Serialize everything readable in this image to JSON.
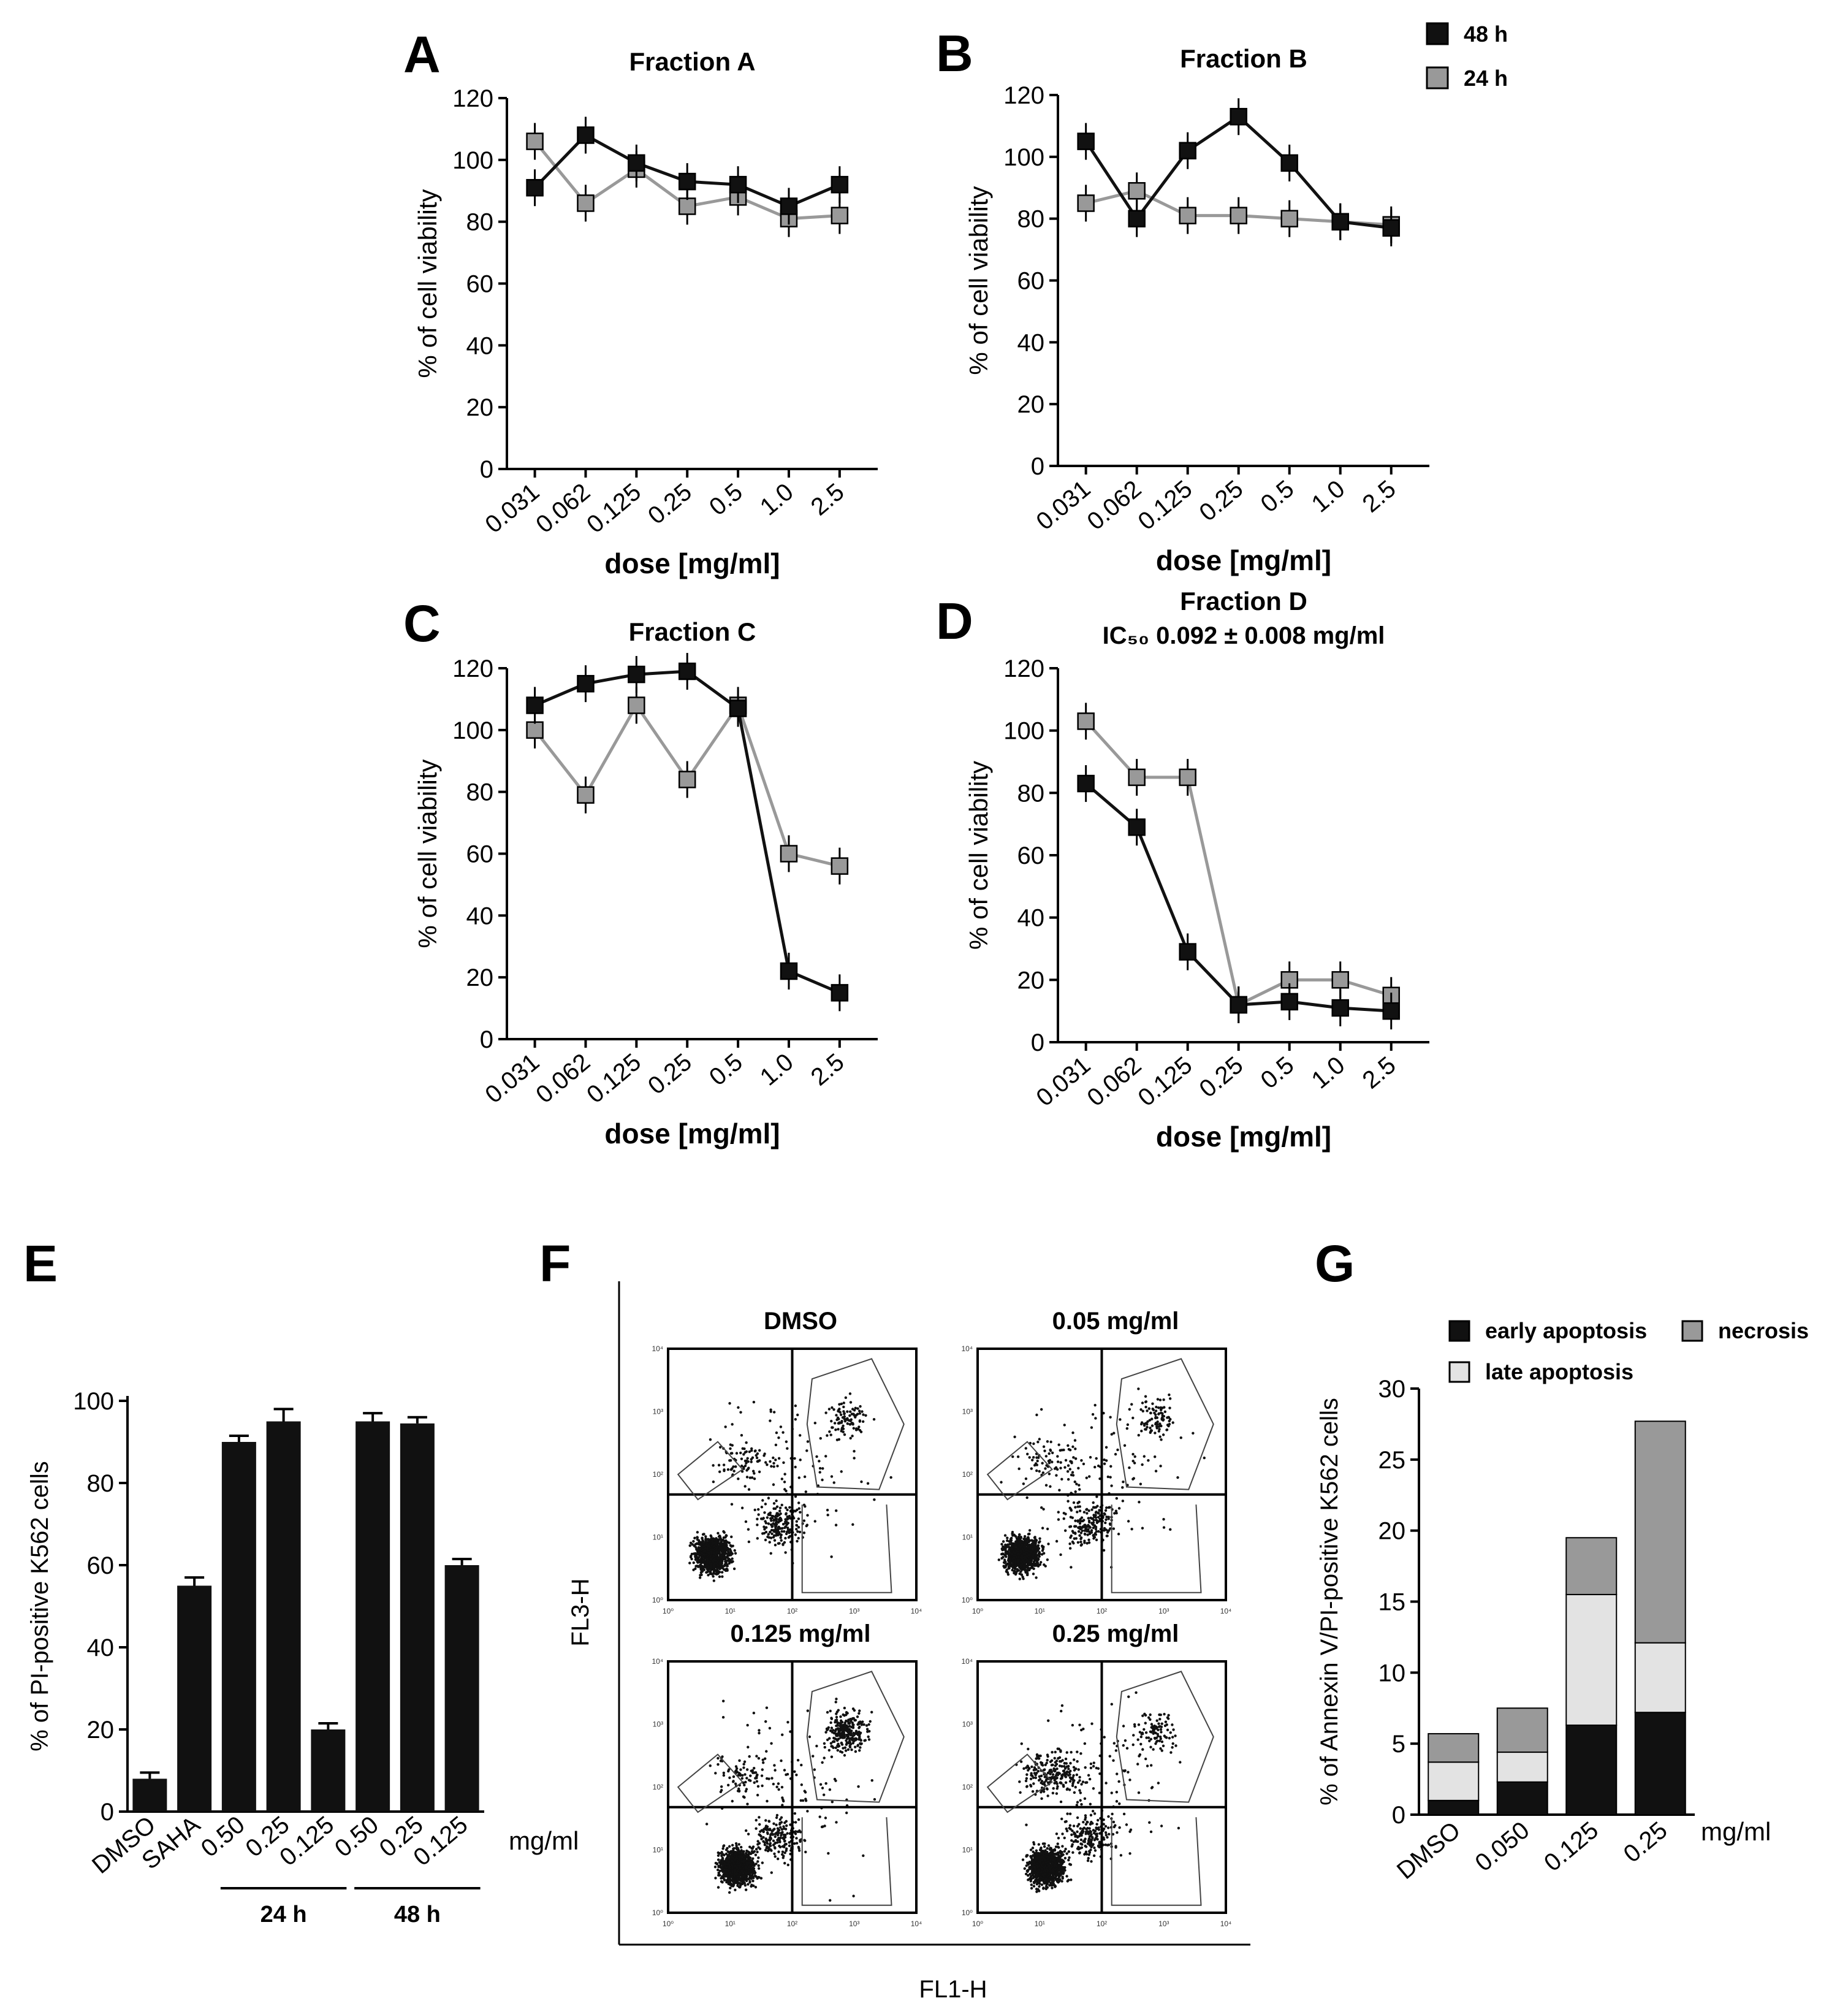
{
  "colors": {
    "s48": "#111111",
    "s24": "#999999",
    "bar": "#111111",
    "early": "#111111",
    "late": "#e3e3e3",
    "necrosis": "#999999"
  },
  "legend_top": {
    "s48": "48 h",
    "s24": "24 h"
  },
  "panel_letters": {
    "A": "A",
    "B": "B",
    "C": "C",
    "D": "D",
    "E": "E",
    "F": "F",
    "G": "G"
  },
  "chart_data": [
    {
      "id": "A",
      "type": "line",
      "title": "Fraction A",
      "subtitle": "",
      "xlabel": "dose [mg/ml]",
      "ylabel": "% of cell viability",
      "ylim": [
        0,
        120
      ],
      "yticks": [
        0,
        20,
        40,
        60,
        80,
        100,
        120
      ],
      "categories": [
        "0.031",
        "0.062",
        "0.125",
        "0.25",
        "0.5",
        "1.0",
        "2.5"
      ],
      "series": [
        {
          "name": "48 h",
          "values": [
            91,
            108,
            99,
            93,
            92,
            85,
            92
          ]
        },
        {
          "name": "24 h",
          "values": [
            106,
            86,
            97,
            85,
            88,
            81,
            82
          ]
        }
      ]
    },
    {
      "id": "B",
      "type": "line",
      "title": "Fraction B",
      "subtitle": "",
      "xlabel": "dose [mg/ml]",
      "ylabel": "% of cell viability",
      "ylim": [
        0,
        120
      ],
      "yticks": [
        0,
        20,
        40,
        60,
        80,
        100,
        120
      ],
      "categories": [
        "0.031",
        "0.062",
        "0.125",
        "0.25",
        "0.5",
        "1.0",
        "2.5"
      ],
      "series": [
        {
          "name": "48 h",
          "values": [
            105,
            80,
            102,
            113,
            98,
            79,
            77
          ]
        },
        {
          "name": "24 h",
          "values": [
            85,
            89,
            81,
            81,
            80,
            79,
            78
          ]
        }
      ]
    },
    {
      "id": "C",
      "type": "line",
      "title": "Fraction C",
      "subtitle": "",
      "xlabel": "dose [mg/ml]",
      "ylabel": "% of cell viability",
      "ylim": [
        0,
        120
      ],
      "yticks": [
        0,
        20,
        40,
        60,
        80,
        100,
        120
      ],
      "categories": [
        "0.031",
        "0.062",
        "0.125",
        "0.25",
        "0.5",
        "1.0",
        "2.5"
      ],
      "series": [
        {
          "name": "48 h",
          "values": [
            108,
            115,
            118,
            119,
            107,
            22,
            15
          ]
        },
        {
          "name": "24 h",
          "values": [
            100,
            79,
            108,
            84,
            108,
            60,
            56
          ]
        }
      ]
    },
    {
      "id": "D",
      "type": "line",
      "title": "Fraction D",
      "subtitle": "IC₅₀ 0.092 ± 0.008 mg/ml",
      "xlabel": "dose [mg/ml]",
      "ylabel": "% of cell viability",
      "ylim": [
        0,
        120
      ],
      "yticks": [
        0,
        20,
        40,
        60,
        80,
        100,
        120
      ],
      "categories": [
        "0.031",
        "0.062",
        "0.125",
        "0.25",
        "0.5",
        "1.0",
        "2.5"
      ],
      "series": [
        {
          "name": "48 h",
          "values": [
            83,
            69,
            29,
            12,
            13,
            11,
            10
          ]
        },
        {
          "name": "24 h",
          "values": [
            103,
            85,
            85,
            12,
            20,
            20,
            15
          ]
        }
      ]
    },
    {
      "id": "E",
      "type": "bar",
      "title": "",
      "xlabel": "",
      "ylabel": "% of PI-positive K562 cells",
      "unit_label": "mg/ml",
      "ylim": [
        0,
        100
      ],
      "yticks": [
        0,
        20,
        40,
        60,
        80,
        100
      ],
      "categories": [
        "DMSO",
        "SAHA",
        "0.50",
        "0.25",
        "0.125",
        "0.50",
        "0.25",
        "0.125"
      ],
      "values": [
        8,
        55,
        90,
        95,
        20,
        95,
        94.5,
        60
      ],
      "errors": [
        1.5,
        2,
        1.5,
        3,
        1.5,
        2,
        1.5,
        1.5
      ],
      "groups": [
        {
          "label": "24 h",
          "from": 2,
          "to": 4
        },
        {
          "label": "48 h",
          "from": 5,
          "to": 7
        }
      ]
    },
    {
      "id": "F",
      "type": "scatter",
      "title": "",
      "xlabel": "FL1-H",
      "ylabel": "FL3-H",
      "subplots": [
        "DMSO",
        "0.05 mg/ml",
        "0.125 mg/ml",
        "0.25 mg/ml"
      ],
      "axis_ticks": [
        "10⁰",
        "10¹",
        "10²",
        "10³",
        "10⁴"
      ]
    },
    {
      "id": "G",
      "type": "bar",
      "title": "",
      "xlabel": "",
      "ylabel": "% of Annexin V/PI-positive K562 cells",
      "unit_label": "mg/ml",
      "ylim": [
        0,
        30
      ],
      "yticks": [
        0,
        5,
        10,
        15,
        20,
        25,
        30
      ],
      "categories": [
        "DMSO",
        "0.050",
        "0.125",
        "0.25"
      ],
      "series": [
        {
          "name": "early apoptosis",
          "values": [
            1.0,
            2.3,
            6.3,
            7.2
          ]
        },
        {
          "name": "late apoptosis",
          "values": [
            2.7,
            2.1,
            9.2,
            4.9
          ]
        },
        {
          "name": "necrosis",
          "values": [
            2.0,
            3.1,
            4.0,
            15.6
          ]
        }
      ]
    }
  ]
}
